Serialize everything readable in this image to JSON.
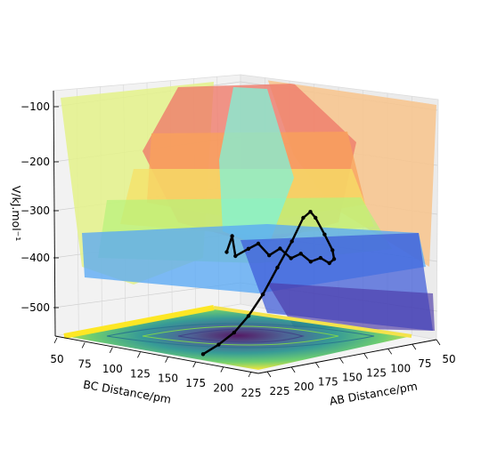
{
  "chart_data": {
    "type": "surface3d",
    "title": "",
    "xlabel": "AB Distance/pm",
    "ylabel": "BC Distance/pm",
    "zlabel": "V/kJ.mol⁻¹",
    "x_ticks": [
      "50",
      "75",
      "100",
      "125",
      "150",
      "175",
      "200",
      "225"
    ],
    "y_ticks": [
      "50",
      "75",
      "100",
      "125",
      "150",
      "175",
      "200",
      "225"
    ],
    "z_ticks": [
      "−100",
      "−200",
      "−300",
      "−400",
      "−500"
    ],
    "xlim": [
      50,
      230
    ],
    "ylim": [
      50,
      230
    ],
    "zlim": [
      -560,
      -80
    ],
    "surface_colormap": "jet",
    "contour_colormap": "viridis",
    "trajectory": {
      "color": "#000000",
      "points": [
        [
          220,
          74,
          -440
        ],
        [
          215,
          74,
          -405
        ],
        [
          212,
          74,
          -445
        ],
        [
          200,
          74,
          -425
        ],
        [
          190,
          75,
          -410
        ],
        [
          180,
          75,
          -430
        ],
        [
          170,
          75,
          -412
        ],
        [
          160,
          75,
          -428
        ],
        [
          150,
          76,
          -414
        ],
        [
          140,
          77,
          -426
        ],
        [
          130,
          78,
          -414
        ],
        [
          120,
          80,
          -420
        ],
        [
          110,
          86,
          -405
        ],
        [
          102,
          96,
          -380
        ],
        [
          96,
          110,
          -340
        ],
        [
          93,
          122,
          -300
        ],
        [
          92,
          128,
          -285
        ],
        [
          92,
          135,
          -295
        ],
        [
          93,
          145,
          -340
        ],
        [
          94,
          158,
          -390
        ],
        [
          94,
          172,
          -440
        ],
        [
          95,
          185,
          -480
        ],
        [
          96,
          198,
          -510
        ],
        [
          97,
          212,
          -530
        ],
        [
          98,
          226,
          -545
        ]
      ]
    }
  }
}
